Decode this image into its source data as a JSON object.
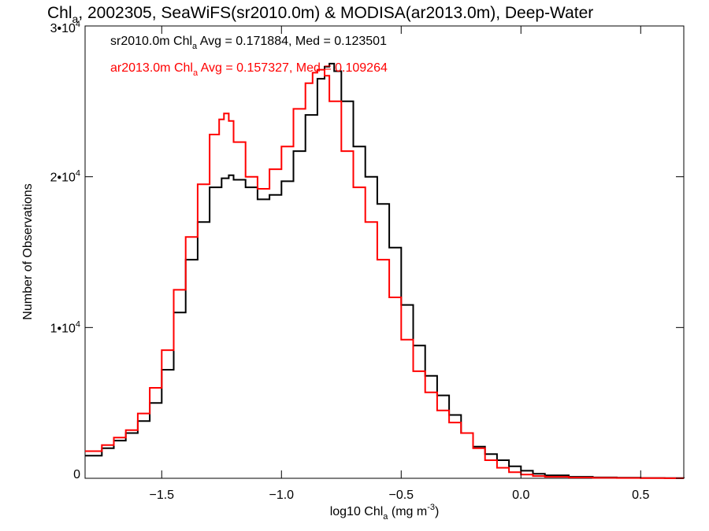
{
  "chart_data": {
    "type": "line",
    "title": {
      "prefix": "Chl",
      "sub": "a",
      "rest": ", 2002305, SeaWiFS(sr2010.0m) & MODISA(ar2013.0m), Deep-Water"
    },
    "xlabel": {
      "prefix": "log10 Chl",
      "sub": "a",
      "rest": " (mg m",
      "sup": "-3",
      "end": ")"
    },
    "ylabel": "Number of Observations",
    "xlim": [
      -1.82,
      0.68
    ],
    "ylim": [
      0,
      30000
    ],
    "x_ticks": [
      {
        "value": -1.5,
        "label": "−1.5"
      },
      {
        "value": -1.0,
        "label": "−1.0"
      },
      {
        "value": -0.5,
        "label": "−0.5"
      },
      {
        "value": 0.0,
        "label": "0.0"
      },
      {
        "value": 0.5,
        "label": "0.5"
      }
    ],
    "y_ticks": [
      {
        "value": 0,
        "base": "0",
        "sup": ""
      },
      {
        "value": 10000,
        "base": "1•10",
        "sup": "4"
      },
      {
        "value": 20000,
        "base": "2•10",
        "sup": "4"
      },
      {
        "value": 30000,
        "base": "3•10",
        "sup": "4"
      }
    ],
    "grid": false,
    "legend_position": "top-left",
    "series": [
      {
        "name": "sr2010.0m",
        "color": "#000000",
        "label": {
          "prefix": "sr2010.0m Chl",
          "sub": "a",
          "rest": " Avg = 0.171884, Med = 0.123501"
        },
        "x": [
          -1.82,
          -1.75,
          -1.7,
          -1.65,
          -1.6,
          -1.55,
          -1.5,
          -1.45,
          -1.4,
          -1.35,
          -1.3,
          -1.25,
          -1.22,
          -1.2,
          -1.15,
          -1.1,
          -1.05,
          -1.0,
          -0.95,
          -0.9,
          -0.85,
          -0.82,
          -0.8,
          -0.78,
          -0.75,
          -0.7,
          -0.65,
          -0.6,
          -0.55,
          -0.5,
          -0.45,
          -0.4,
          -0.35,
          -0.3,
          -0.25,
          -0.2,
          -0.15,
          -0.1,
          -0.05,
          0.0,
          0.05,
          0.1,
          0.2,
          0.3,
          0.4,
          0.5,
          0.6,
          0.68
        ],
        "y": [
          1500,
          2000,
          2500,
          3000,
          3800,
          5000,
          7200,
          11000,
          14500,
          17000,
          19300,
          19900,
          20100,
          19800,
          19300,
          18500,
          18800,
          19700,
          21700,
          24100,
          26500,
          27300,
          27500,
          27000,
          25000,
          22000,
          20000,
          18200,
          15300,
          11500,
          8800,
          6800,
          5500,
          4200,
          3000,
          2100,
          1600,
          1200,
          800,
          500,
          300,
          200,
          100,
          60,
          40,
          20,
          10,
          5
        ]
      },
      {
        "name": "ar2013.0m",
        "color": "#ff0000",
        "label": {
          "prefix": "ar2013.0m Chl",
          "sub": "a",
          "rest": " Avg = 0.157327, Med = 0.109264"
        },
        "x": [
          -1.82,
          -1.75,
          -1.7,
          -1.65,
          -1.6,
          -1.55,
          -1.5,
          -1.45,
          -1.4,
          -1.35,
          -1.3,
          -1.26,
          -1.24,
          -1.22,
          -1.2,
          -1.15,
          -1.1,
          -1.05,
          -1.0,
          -0.95,
          -0.9,
          -0.87,
          -0.85,
          -0.82,
          -0.8,
          -0.75,
          -0.7,
          -0.65,
          -0.6,
          -0.55,
          -0.5,
          -0.45,
          -0.4,
          -0.35,
          -0.3,
          -0.25,
          -0.2,
          -0.15,
          -0.1,
          -0.05,
          0.0,
          0.05,
          0.1,
          0.2,
          0.3,
          0.4,
          0.5,
          0.6,
          0.68
        ],
        "y": [
          1800,
          2200,
          2700,
          3200,
          4300,
          6000,
          8500,
          12500,
          16000,
          19500,
          22800,
          23800,
          24200,
          23700,
          22300,
          20000,
          19200,
          20500,
          22000,
          24500,
          26200,
          26900,
          27100,
          26700,
          25000,
          21700,
          19300,
          17000,
          14500,
          12000,
          9200,
          7100,
          5700,
          4500,
          3700,
          3000,
          2000,
          1200,
          700,
          400,
          250,
          150,
          100,
          50,
          30,
          20,
          10,
          5,
          3
        ]
      }
    ]
  }
}
